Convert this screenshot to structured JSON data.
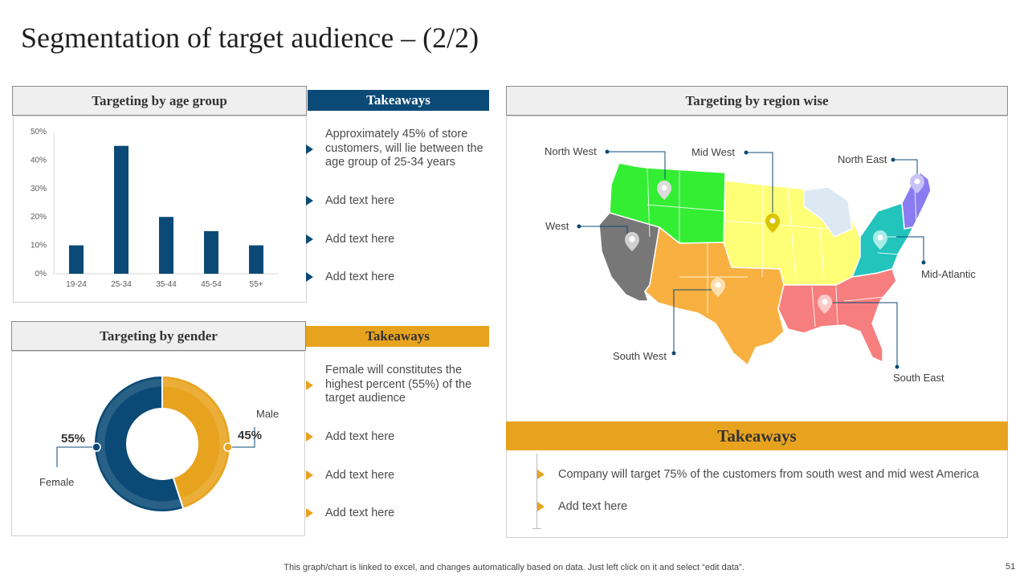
{
  "slide": {
    "title": "Segmentation of target audience – (2/2)",
    "footnote": "This graph/chart is linked to excel,  and changes automatically based on data. Just left click on it and select “edit data”.",
    "page_number": "51"
  },
  "age_panel": {
    "heading": "Targeting by age group",
    "takeaways_heading": "Takeaways",
    "bullets": [
      "Approximately 45% of store customers, will lie between the age group of 25-34 years",
      "Add text here",
      "Add text here",
      "Add text here"
    ]
  },
  "gender_panel": {
    "heading": "Targeting by gender",
    "takeaways_heading": "Takeaways",
    "male_label": "Male",
    "female_label": "Female",
    "bullets": [
      "Female will constitutes the highest percent (55%) of the target audience",
      "Add text here",
      "Add text here",
      "Add text here"
    ]
  },
  "region_panel": {
    "heading": "Targeting by region wise",
    "regions": {
      "north_west": "North West",
      "mid_west": "Mid West",
      "north_east": "North East",
      "west": "West",
      "mid_atlantic": "Mid-Atlantic",
      "south_west": "South West",
      "south_east": "South East"
    },
    "takeaways_heading": "Takeaways",
    "bullets": [
      "Company will target 75% of the customers from south west and mid west America",
      "Add text here"
    ]
  },
  "colors": {
    "navy": "#0b4a76",
    "gold": "#e8a31e",
    "region_north_west": "#33ee33",
    "region_mid_west": "#ffff77",
    "region_north_east": "#8a7cf0",
    "region_west": "#777777",
    "region_mid_atlantic": "#22c4bc",
    "region_south_west": "#f8b040",
    "region_south_east": "#f77e7e",
    "great_lakes": "#dce9f2"
  },
  "chart_data": [
    {
      "type": "bar",
      "categories": [
        "19-24",
        "25-34",
        "35-44",
        "45-54",
        "55+"
      ],
      "values": [
        10,
        45,
        20,
        15,
        10
      ],
      "yticks": [
        "0%",
        "10%",
        "20%",
        "30%",
        "40%",
        "50%"
      ],
      "ylim": [
        0,
        50
      ],
      "grid": false,
      "color": "#0b4a76"
    },
    {
      "type": "pie",
      "variant": "donut",
      "slices": [
        {
          "label": "Male",
          "value": 45,
          "display": "45%",
          "color": "#e8a31e"
        },
        {
          "label": "Female",
          "value": 55,
          "display": "55%",
          "color": "#0b4a76"
        }
      ]
    }
  ]
}
